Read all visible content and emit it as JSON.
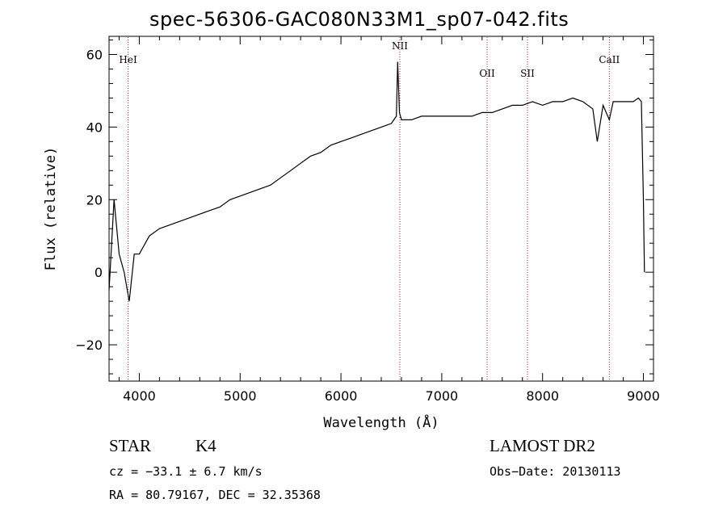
{
  "chart_data": {
    "type": "line",
    "title": "spec-56306-GAC080N33M1_sp07-042.fits",
    "xlabel": "Wavelength (Å)",
    "ylabel": "Flux (relative)",
    "xlim": [
      3700,
      9100
    ],
    "ylim": [
      -30,
      65
    ],
    "xticks": [
      4000,
      5000,
      6000,
      7000,
      8000,
      9000
    ],
    "yticks": [
      -20,
      0,
      20,
      40,
      60
    ],
    "line_color": "#000000",
    "marker_color": "#b22222",
    "series": [
      {
        "x": [
          3700,
          3750,
          3800,
          3850,
          3900,
          3950,
          4000,
          4100,
          4200,
          4300,
          4400,
          4500,
          4600,
          4700,
          4800,
          4900,
          5000,
          5100,
          5200,
          5300,
          5400,
          5500,
          5600,
          5700,
          5800,
          5900,
          6000,
          6100,
          6200,
          6300,
          6400,
          6500,
          6550,
          6563,
          6580,
          6600,
          6700,
          6800,
          6900,
          7000,
          7100,
          7200,
          7300,
          7400,
          7500,
          7600,
          7700,
          7800,
          7900,
          8000,
          8100,
          8200,
          8300,
          8400,
          8498,
          8542,
          8600,
          8662,
          8700,
          8800,
          8900,
          8950,
          8980,
          9000,
          9010
        ],
        "y": [
          -5,
          20,
          5,
          0,
          -8,
          5,
          5,
          10,
          12,
          13,
          14,
          15,
          16,
          17,
          18,
          20,
          21,
          22,
          23,
          24,
          26,
          28,
          30,
          32,
          33,
          35,
          36,
          37,
          38,
          39,
          40,
          41,
          43,
          58,
          44,
          42,
          42,
          43,
          43,
          43,
          43,
          43,
          43,
          44,
          44,
          45,
          46,
          46,
          47,
          46,
          47,
          47,
          48,
          47,
          45,
          36,
          46,
          42,
          47,
          47,
          47,
          48,
          47,
          20,
          0
        ]
      }
    ],
    "line_markers": [
      {
        "label": "HeI",
        "x": 3889
      },
      {
        "label": "NII",
        "x": 6584
      },
      {
        "label": "OII",
        "x": 7450
      },
      {
        "label": "SII",
        "x": 7850
      },
      {
        "label": "CaII",
        "x": 8662
      }
    ]
  },
  "footer": {
    "object_type": "STAR",
    "subclass": "K4",
    "survey": "LAMOST DR2",
    "cz": "cz = −33.1 ± 6.7 km/s",
    "obs_date": "Obs−Date: 20130113",
    "coords": "RA =  80.79167, DEC =  32.35368"
  }
}
